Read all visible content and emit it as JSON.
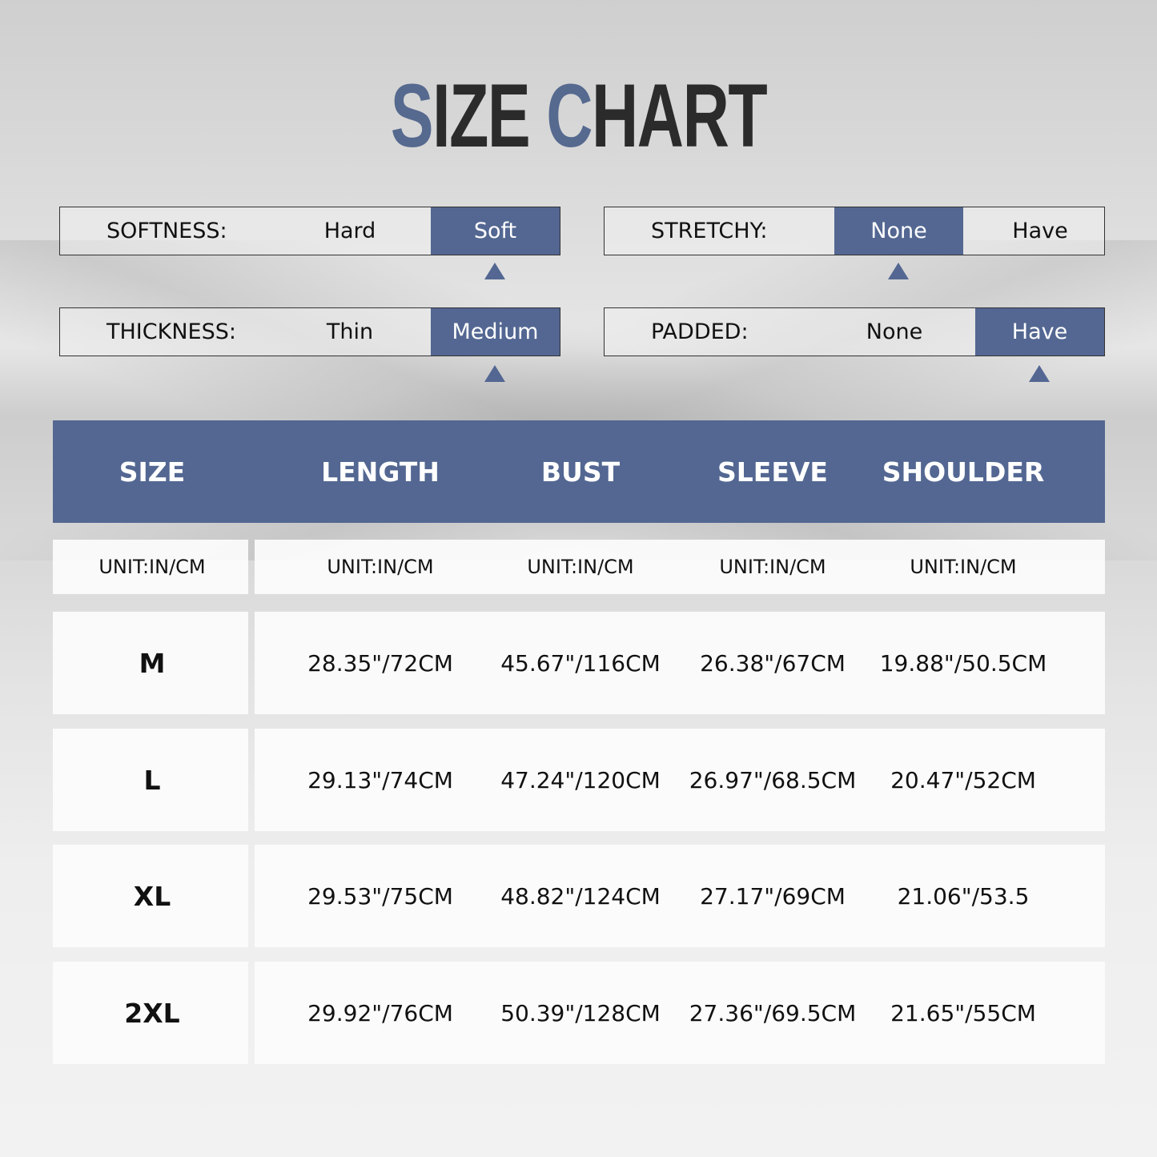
{
  "title": {
    "part1_accent": "S",
    "part1": "IZE ",
    "part2_accent": "C",
    "part2": "HART"
  },
  "colors": {
    "accent": "#536792",
    "title_dark": "#2b2b2b"
  },
  "attributes": [
    {
      "label": "SOFTNESS:",
      "options": [
        "Hard",
        "Soft"
      ],
      "selected": "Soft"
    },
    {
      "label": "STRETCHY:",
      "options": [
        "None",
        "Have"
      ],
      "selected": "None"
    },
    {
      "label": "THICKNESS:",
      "options": [
        "Thin",
        "Medium"
      ],
      "selected": "Medium"
    },
    {
      "label": "PADDED:",
      "options": [
        "None",
        "Have"
      ],
      "selected": "Have"
    }
  ],
  "table": {
    "headers": [
      "SIZE",
      "LENGTH",
      "BUST",
      "SLEEVE",
      "SHOULDER"
    ],
    "units": [
      "UNIT:IN/CM",
      "UNIT:IN/CM",
      "UNIT:IN/CM",
      "UNIT:IN/CM",
      "UNIT:IN/CM"
    ],
    "rows": [
      [
        "M",
        "28.35\"/72CM",
        "45.67\"/116CM",
        "26.38\"/67CM",
        "19.88\"/50.5CM"
      ],
      [
        "L",
        "29.13\"/74CM",
        "47.24\"/120CM",
        "26.97\"/68.5CM",
        "20.47\"/52CM"
      ],
      [
        "XL",
        "29.53\"/75CM",
        "48.82\"/124CM",
        "27.17\"/69CM",
        "21.06\"/53.5"
      ],
      [
        "2XL",
        "29.92\"/76CM",
        "50.39\"/128CM",
        "27.36\"/69.5CM",
        "21.65\"/55CM"
      ]
    ]
  }
}
